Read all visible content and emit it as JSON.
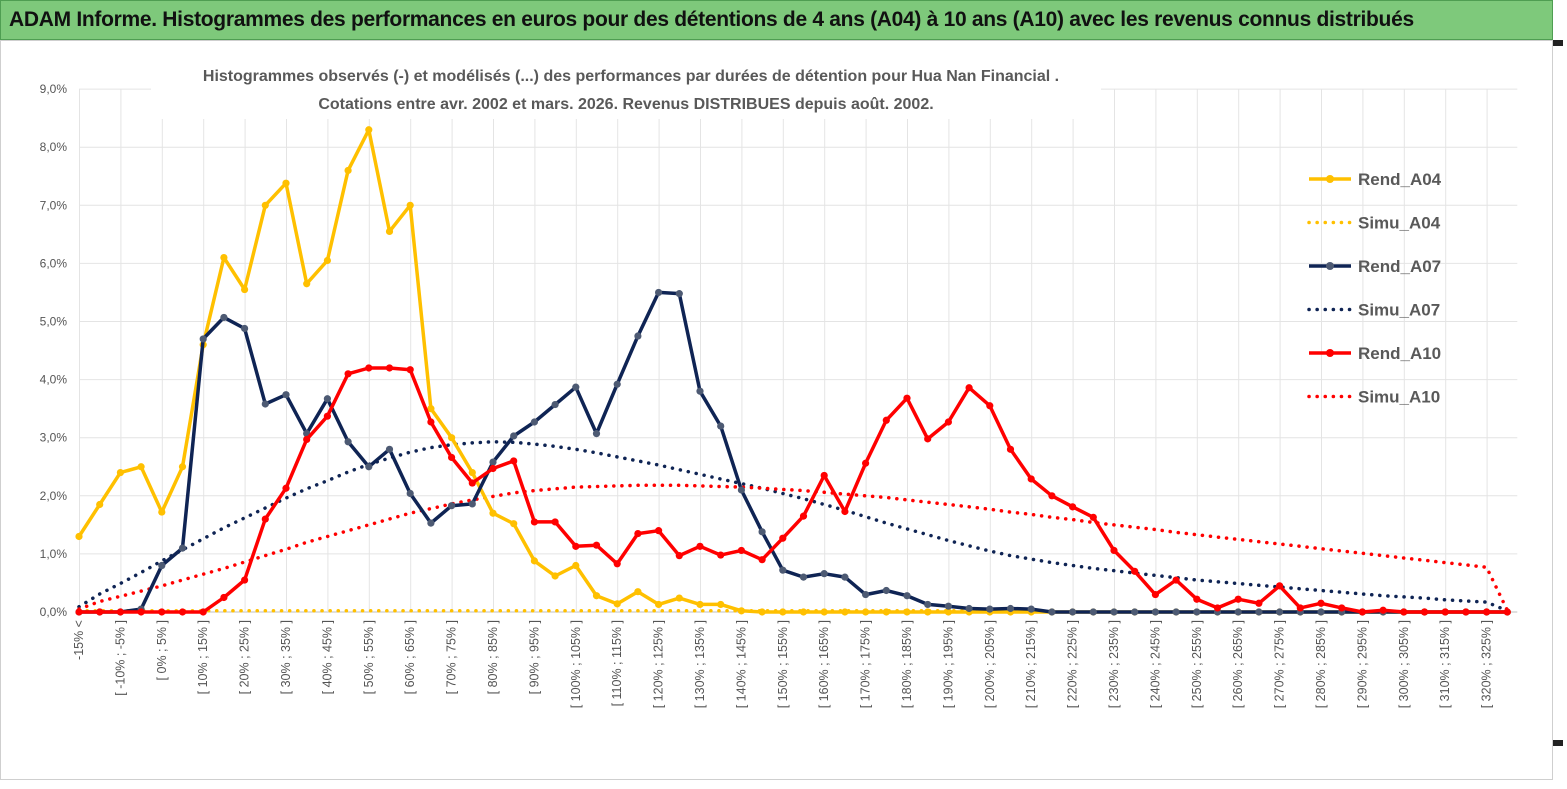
{
  "header": {
    "title": "ADAM Informe. Histogrammes des performances en euros pour des détentions de 4 ans (A04) à 10 ans (A10) avec les revenus connus distribués"
  },
  "chart_data": {
    "type": "line",
    "title_line1": "Histogrammes observés (-) et modélisés (...) des performances par durées de détention pour Hua Nan Financial .",
    "title_line2": "Cotations entre avr. 2002 et mars. 2026. Revenus DISTRIBUES depuis août. 2002.",
    "xlabel": "",
    "ylabel": "",
    "ylim": [
      0,
      9
    ],
    "yticks": [
      "0,0%",
      "1,0%",
      "2,0%",
      "3,0%",
      "4,0%",
      "5,0%",
      "6,0%",
      "7,0%",
      "8,0%",
      "9,0%"
    ],
    "grid": true,
    "legend_position": "right",
    "x": [
      "-15% <",
      "[ -15% ; -10% ]",
      "[ -10% ; -5% ]",
      "[ -5% ; 0% ]",
      "[ 0% ; 5% ]",
      "[ 5% ; 10% ]",
      "[ 10% ; 15% ]",
      "[ 15% ; 20% ]",
      "[ 20% ; 25% ]",
      "[ 25% ; 30% ]",
      "[ 30% ; 35% ]",
      "[ 35% ; 40% ]",
      "[ 40% ; 45% ]",
      "[ 45% ; 50% ]",
      "[ 50% ; 55% ]",
      "[ 55% ; 60% ]",
      "[ 60% ; 65% ]",
      "[ 65% ; 70% ]",
      "[ 70% ; 75% ]",
      "[ 75% ; 80% ]",
      "[ 80% ; 85% ]",
      "[ 85% ; 90% ]",
      "[ 90% ; 95% ]",
      "[ 95% ; 100% ]",
      "[ 100% ; 105% ]",
      "[ 105% ; 110% ]",
      "[ 110% ; 115% ]",
      "[ 115% ; 120% ]",
      "[ 120% ; 125% ]",
      "[ 125% ; 130% ]",
      "[ 130% ; 135% ]",
      "[ 135% ; 140% ]",
      "[ 140% ; 145% ]",
      "[ 145% ; 150% ]",
      "[ 150% ; 155% ]",
      "[ 155% ; 160% ]",
      "[ 160% ; 165% ]",
      "[ 165% ; 170% ]",
      "[ 170% ; 175% ]",
      "[ 175% ; 180% ]",
      "[ 180% ; 185% ]",
      "[ 185% ; 190% ]",
      "[ 190% ; 195% ]",
      "[ 195% ; 200% ]",
      "[ 200% ; 205% ]",
      "[ 205% ; 210% ]",
      "[ 210% ; 215% ]",
      "[ 215% ; 220% ]",
      "[ 220% ; 225% ]",
      "[ 225% ; 230% ]",
      "[ 230% ; 235% ]",
      "[ 235% ; 240% ]",
      "[ 240% ; 245% ]",
      "[ 245% ; 250% ]",
      "[ 250% ; 255% ]",
      "[ 255% ; 260% ]",
      "[ 260% ; 265% ]",
      "[ 265% ; 270% ]",
      "[ 270% ; 275% ]",
      "[ 275% ; 280% ]",
      "[ 280% ; 285% ]",
      "[ 285% ; 290% ]",
      "[ 290% ; 295% ]",
      "[ 295% ; 300% ]",
      "[ 300% ; 305% ]",
      "[ 305% ; 310% ]",
      "[ 310% ; 315% ]",
      "[ 315% ; 320% ]",
      "[ 320% ; 325% ]",
      "> 325%"
    ],
    "x_labels_shown": [
      "-15% <",
      "[ -10% ; -5% ]",
      "[ 0% ; 5% ]",
      "[ 10% ; 15% ]",
      "[ 20% ; 25% ]",
      "[ 30% ; 35% ]",
      "[ 40% ; 45% ]",
      "[ 50% ; 55% ]",
      "[ 60% ; 65% ]",
      "[ 70% ; 75% ]",
      "[ 80% ; 85% ]",
      "[ 90% ; 95% ]",
      "[ 100% ; 105% ]",
      "[ 110% ; 115% ]",
      "[ 120% ; 125% ]",
      "[ 130% ; 135% ]",
      "[ 140% ; 145% ]",
      "[ 150% ; 155% ]",
      "[ 160% ; 165% ]",
      "[ 170% ; 175% ]",
      "[ 180% ; 185% ]",
      "[ 190% ; 195% ]",
      "[ 200% ; 205% ]",
      "[ 210% ; 215% ]",
      "[ 220% ; 225% ]",
      "[ 230% ; 235% ]",
      "[ 240% ; 245% ]",
      "[ 250% ; 255% ]",
      "[ 260% ; 265% ]",
      "[ 270% ; 275% ]",
      "[ 280% ; 285% ]",
      "[ 290% ; 295% ]",
      "[ 300% ; 305% ]",
      "[ 310% ; 315% ]",
      "[ 320% ; 325% ]"
    ],
    "series": [
      {
        "name": "Rend_A04",
        "style": "solid",
        "color": "#FFC000",
        "values": [
          1.3,
          1.85,
          2.4,
          2.5,
          1.72,
          2.5,
          4.6,
          6.1,
          5.55,
          7.0,
          7.38,
          5.65,
          6.05,
          7.6,
          8.3,
          6.55,
          7.0,
          3.5,
          3.0,
          2.4,
          1.7,
          1.52,
          0.88,
          0.62,
          0.8,
          0.28,
          0.14,
          0.35,
          0.13,
          0.24,
          0.13,
          0.13,
          0.02,
          0,
          0,
          0,
          0,
          0,
          0,
          0,
          0,
          0,
          0,
          0,
          0,
          0,
          0,
          0,
          0,
          0,
          0,
          0,
          0,
          0,
          0,
          0,
          0,
          0,
          0,
          0,
          0,
          0,
          0,
          0,
          0,
          0,
          0,
          0,
          0,
          0
        ]
      },
      {
        "name": "Simu_A04",
        "style": "dotted",
        "color": "#FFC000",
        "values": [
          0.02,
          0.02,
          0.02,
          0.02,
          0.02,
          0.02,
          0.02,
          0.02,
          0.02,
          0.02,
          0.02,
          0.02,
          0.02,
          0.02,
          0.02,
          0.02,
          0.02,
          0.02,
          0.02,
          0.02,
          0.02,
          0.02,
          0.02,
          0.02,
          0.02,
          0.02,
          0.02,
          0.02,
          0.02,
          0.02,
          0.02,
          0.02,
          0.02,
          0.02,
          0.02,
          0.02,
          0.02,
          0.02,
          0.02,
          0.02,
          0.02,
          0.02,
          0.02,
          0.02,
          0.02,
          0.02,
          0.02,
          null,
          null,
          null,
          null,
          null,
          null,
          null,
          null,
          null,
          null,
          null,
          null,
          null,
          null,
          null,
          null,
          null,
          null,
          null,
          null,
          null,
          null,
          null
        ]
      },
      {
        "name": "Rend_A07",
        "style": "solid",
        "color": "#0F2454",
        "values": [
          0,
          0,
          0,
          0.05,
          0.8,
          1.1,
          4.7,
          5.07,
          4.88,
          3.58,
          3.74,
          3.07,
          3.67,
          2.93,
          2.5,
          2.8,
          2.04,
          1.53,
          1.83,
          1.86,
          2.58,
          3.03,
          3.27,
          3.57,
          3.87,
          3.07,
          3.92,
          4.75,
          5.5,
          5.48,
          3.8,
          3.2,
          2.1,
          1.38,
          0.72,
          0.6,
          0.66,
          0.6,
          0.3,
          0.37,
          0.28,
          0.13,
          0.1,
          0.06,
          0.05,
          0.06,
          0.05,
          0,
          0,
          0,
          0,
          0,
          0,
          0,
          0,
          0,
          0,
          0,
          0,
          0,
          0,
          0,
          0,
          0,
          0,
          0,
          0,
          0,
          0,
          0
        ]
      },
      {
        "name": "Simu_A07",
        "style": "dotted",
        "color": "#0F2454",
        "values": [
          0.09,
          0.31,
          0.49,
          0.68,
          0.88,
          1.07,
          1.26,
          1.45,
          1.62,
          1.79,
          1.96,
          2.12,
          2.26,
          2.41,
          2.54,
          2.65,
          2.75,
          2.83,
          2.88,
          2.91,
          2.93,
          2.92,
          2.89,
          2.85,
          2.8,
          2.74,
          2.67,
          2.6,
          2.53,
          2.45,
          2.37,
          2.29,
          2.21,
          2.13,
          2.04,
          1.95,
          1.85,
          1.75,
          1.64,
          1.53,
          1.43,
          1.33,
          1.23,
          1.14,
          1.05,
          0.97,
          0.91,
          0.85,
          0.8,
          0.75,
          0.71,
          0.67,
          0.63,
          0.59,
          0.55,
          0.52,
          0.49,
          0.46,
          0.43,
          0.4,
          0.37,
          0.34,
          0.31,
          0.28,
          0.26,
          0.24,
          0.21,
          0.19,
          0.17,
          0.02
        ]
      },
      {
        "name": "Rend_A10",
        "style": "solid",
        "color": "#FF0000",
        "values": [
          0,
          0,
          0,
          0,
          0,
          0,
          0,
          0.25,
          0.55,
          1.6,
          2.13,
          2.97,
          3.37,
          4.1,
          4.2,
          4.2,
          4.17,
          3.27,
          2.66,
          2.22,
          2.47,
          2.6,
          1.55,
          1.55,
          1.13,
          1.15,
          0.83,
          1.35,
          1.4,
          0.97,
          1.13,
          0.98,
          1.06,
          0.9,
          1.27,
          1.65,
          2.35,
          1.73,
          2.56,
          3.3,
          3.68,
          2.98,
          3.27,
          3.86,
          3.55,
          2.8,
          2.29,
          2.0,
          1.81,
          1.63,
          1.06,
          0.7,
          0.3,
          0.55,
          0.22,
          0.07,
          0.22,
          0.15,
          0.45,
          0.07,
          0.15,
          0.07,
          0,
          0.03,
          0,
          0,
          0,
          0,
          0,
          0
        ]
      },
      {
        "name": "Simu_A10",
        "style": "dotted",
        "color": "#FF0000",
        "values": [
          0.05,
          0.18,
          0.27,
          0.36,
          0.45,
          0.55,
          0.65,
          0.75,
          0.86,
          0.97,
          1.08,
          1.2,
          1.3,
          1.4,
          1.5,
          1.6,
          1.7,
          1.78,
          1.86,
          1.93,
          1.99,
          2.05,
          2.09,
          2.12,
          2.15,
          2.16,
          2.17,
          2.18,
          2.18,
          2.18,
          2.17,
          2.16,
          2.15,
          2.13,
          2.11,
          2.09,
          2.06,
          2.03,
          2.0,
          1.97,
          1.93,
          1.89,
          1.85,
          1.81,
          1.77,
          1.72,
          1.68,
          1.63,
          1.59,
          1.54,
          1.5,
          1.46,
          1.42,
          1.37,
          1.33,
          1.29,
          1.25,
          1.21,
          1.17,
          1.13,
          1.09,
          1.05,
          1.01,
          0.97,
          0.93,
          0.89,
          0.85,
          0.81,
          0.77,
          0.03
        ]
      }
    ]
  }
}
